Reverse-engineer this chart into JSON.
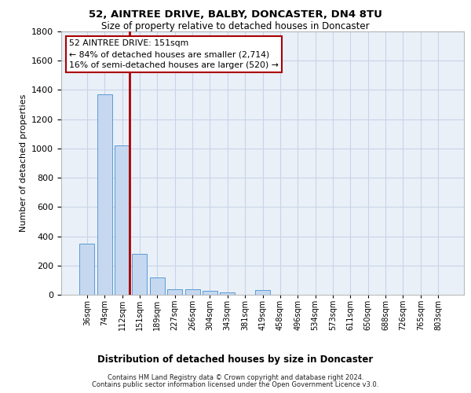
{
  "title_line1": "52, AINTREE DRIVE, BALBY, DONCASTER, DN4 8TU",
  "title_line2": "Size of property relative to detached houses in Doncaster",
  "xlabel": "Distribution of detached houses by size in Doncaster",
  "ylabel": "Number of detached properties",
  "footnote_line1": "Contains HM Land Registry data © Crown copyright and database right 2024.",
  "footnote_line2": "Contains public sector information licensed under the Open Government Licence v3.0.",
  "categories": [
    "36sqm",
    "74sqm",
    "112sqm",
    "151sqm",
    "189sqm",
    "227sqm",
    "266sqm",
    "304sqm",
    "343sqm",
    "381sqm",
    "419sqm",
    "458sqm",
    "496sqm",
    "534sqm",
    "573sqm",
    "611sqm",
    "650sqm",
    "688sqm",
    "726sqm",
    "765sqm",
    "803sqm"
  ],
  "values": [
    350,
    1370,
    1020,
    280,
    120,
    40,
    35,
    25,
    15,
    0,
    30,
    0,
    0,
    0,
    0,
    0,
    0,
    0,
    0,
    0,
    0
  ],
  "bar_color": "#c5d8f0",
  "bar_edge_color": "#5b9bd5",
  "red_line_after_index": 2,
  "highlight_color": "#aa0000",
  "ylim_max": 1800,
  "yticks": [
    0,
    200,
    400,
    600,
    800,
    1000,
    1200,
    1400,
    1600,
    1800
  ],
  "annotation_line1": "52 AINTREE DRIVE: 151sqm",
  "annotation_line2": "← 84% of detached houses are smaller (2,714)",
  "annotation_line3": "16% of semi-detached houses are larger (520) →",
  "axes_bg": "#eaf0f8",
  "grid_color": "#c8d4e8"
}
